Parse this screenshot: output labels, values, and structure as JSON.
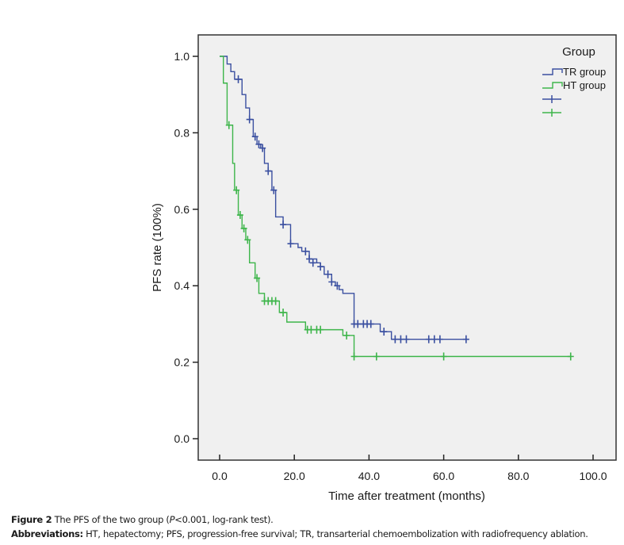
{
  "chart_data": {
    "type": "line",
    "subtype": "kaplan-meier step",
    "title": "",
    "xlabel": "Time after treatment (months)",
    "ylabel": "PFS rate (100%)",
    "xlim": [
      0,
      100
    ],
    "ylim": [
      0,
      1.0
    ],
    "x_ticks": [
      0,
      20,
      40,
      60,
      80,
      100
    ],
    "x_tick_labels": [
      "0.0",
      "20.0",
      "40.0",
      "60.0",
      "80.0",
      "100.0"
    ],
    "y_ticks": [
      0,
      0.2,
      0.4,
      0.6,
      0.8,
      1.0
    ],
    "y_tick_labels": [
      "0.0",
      "0.2",
      "0.4",
      "0.6",
      "0.8",
      "1.0"
    ],
    "grid": false,
    "legend": {
      "title": "Group",
      "placement": "top-right",
      "entries": [
        {
          "label": "TR group",
          "kind": "line",
          "series": "TR group"
        },
        {
          "label": "HT group",
          "kind": "line",
          "series": "HT group"
        },
        {
          "label": "",
          "kind": "censor",
          "series": "TR group"
        },
        {
          "label": "",
          "kind": "censor",
          "series": "HT group"
        }
      ]
    },
    "series": [
      {
        "name": "TR group",
        "color": "#3a4fa0",
        "steps": [
          [
            0,
            1.0
          ],
          [
            2,
            0.98
          ],
          [
            3,
            0.96
          ],
          [
            4,
            0.94
          ],
          [
            6,
            0.9
          ],
          [
            7,
            0.865
          ],
          [
            8,
            0.835
          ],
          [
            9,
            0.79
          ],
          [
            10,
            0.77
          ],
          [
            11,
            0.76
          ],
          [
            12,
            0.72
          ],
          [
            13,
            0.7
          ],
          [
            14,
            0.65
          ],
          [
            15,
            0.58
          ],
          [
            17,
            0.56
          ],
          [
            19,
            0.51
          ],
          [
            21,
            0.5
          ],
          [
            22,
            0.49
          ],
          [
            24,
            0.47
          ],
          [
            26,
            0.46
          ],
          [
            27,
            0.45
          ],
          [
            28,
            0.43
          ],
          [
            30,
            0.41
          ],
          [
            31,
            0.4
          ],
          [
            32,
            0.39
          ],
          [
            33,
            0.38
          ],
          [
            36,
            0.3
          ],
          [
            43,
            0.28
          ],
          [
            46,
            0.26
          ],
          [
            66,
            0.26
          ]
        ],
        "censored": [
          [
            5,
            0.94
          ],
          [
            8,
            0.835
          ],
          [
            9.5,
            0.79
          ],
          [
            10.5,
            0.77
          ],
          [
            11.5,
            0.76
          ],
          [
            13,
            0.7
          ],
          [
            14.5,
            0.65
          ],
          [
            17,
            0.56
          ],
          [
            19,
            0.51
          ],
          [
            23,
            0.49
          ],
          [
            24,
            0.47
          ],
          [
            25,
            0.46
          ],
          [
            27,
            0.45
          ],
          [
            29,
            0.43
          ],
          [
            30,
            0.41
          ],
          [
            31.5,
            0.4
          ],
          [
            36,
            0.3
          ],
          [
            37,
            0.3
          ],
          [
            38.5,
            0.3
          ],
          [
            39.5,
            0.3
          ],
          [
            40.5,
            0.3
          ],
          [
            44,
            0.28
          ],
          [
            47,
            0.26
          ],
          [
            48.5,
            0.26
          ],
          [
            50,
            0.26
          ],
          [
            56,
            0.26
          ],
          [
            57.5,
            0.26
          ],
          [
            59,
            0.26
          ],
          [
            66,
            0.26
          ]
        ]
      },
      {
        "name": "HT group",
        "color": "#3db54a",
        "steps": [
          [
            0,
            1.0
          ],
          [
            1,
            0.93
          ],
          [
            2,
            0.82
          ],
          [
            3.5,
            0.72
          ],
          [
            4,
            0.65
          ],
          [
            5,
            0.585
          ],
          [
            6,
            0.55
          ],
          [
            7,
            0.52
          ],
          [
            8,
            0.46
          ],
          [
            9.5,
            0.42
          ],
          [
            10.5,
            0.38
          ],
          [
            12,
            0.36
          ],
          [
            16,
            0.33
          ],
          [
            18,
            0.305
          ],
          [
            23,
            0.285
          ],
          [
            33,
            0.27
          ],
          [
            36,
            0.215
          ],
          [
            94,
            0.215
          ]
        ],
        "censored": [
          [
            2.5,
            0.82
          ],
          [
            4.5,
            0.65
          ],
          [
            5.5,
            0.585
          ],
          [
            6.5,
            0.55
          ],
          [
            7.5,
            0.52
          ],
          [
            10,
            0.42
          ],
          [
            12,
            0.36
          ],
          [
            13,
            0.36
          ],
          [
            14,
            0.36
          ],
          [
            15,
            0.36
          ],
          [
            17,
            0.33
          ],
          [
            23.5,
            0.285
          ],
          [
            24.5,
            0.285
          ],
          [
            26,
            0.285
          ],
          [
            27,
            0.285
          ],
          [
            34,
            0.27
          ],
          [
            36,
            0.215
          ],
          [
            42,
            0.215
          ],
          [
            60,
            0.215
          ],
          [
            94,
            0.215
          ]
        ]
      }
    ]
  },
  "caption": {
    "line1_label": "Figure 2",
    "line1_text_a": " The PFS of the two group (",
    "line1_italic": "P",
    "line1_text_b": "<0.001, log-rank test).",
    "line2_label": "Abbreviations:",
    "line2_text": " HT, hepatectomy; PFS, progression-free survival; TR, transarterial chemoembolization with radiofrequency ablation."
  }
}
